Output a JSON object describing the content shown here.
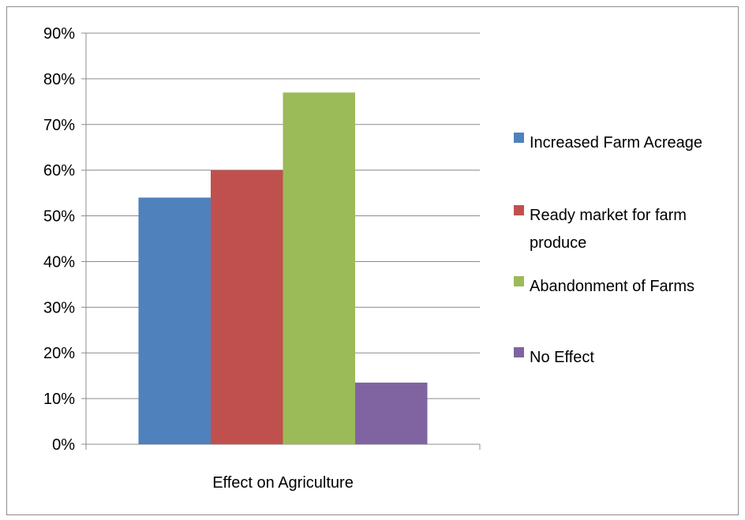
{
  "chart_data": {
    "type": "bar",
    "categories": [
      "Effect on Agriculture"
    ],
    "series": [
      {
        "name": "Increased Farm Acreage",
        "values": [
          54
        ],
        "color": "#4f81bd"
      },
      {
        "name": "Ready market for farm produce",
        "values": [
          60
        ],
        "color": "#c0504d"
      },
      {
        "name": "Abandonment of Farms",
        "values": [
          77
        ],
        "color": "#9bbb59"
      },
      {
        "name": "No Effect",
        "values": [
          13.5
        ],
        "color": "#8064a2"
      }
    ],
    "yticks": [
      "0%",
      "10%",
      "20%",
      "30%",
      "40%",
      "50%",
      "60%",
      "70%",
      "80%",
      "90%"
    ],
    "ylim": [
      0,
      90
    ],
    "unit": "%",
    "grid": true,
    "legend_position": "right",
    "legend_lines": [
      [
        "Increased Farm Acreage"
      ],
      [
        "Ready market for farm",
        "produce"
      ],
      [
        "Abandonment of Farms"
      ],
      [
        "No Effect"
      ]
    ]
  }
}
